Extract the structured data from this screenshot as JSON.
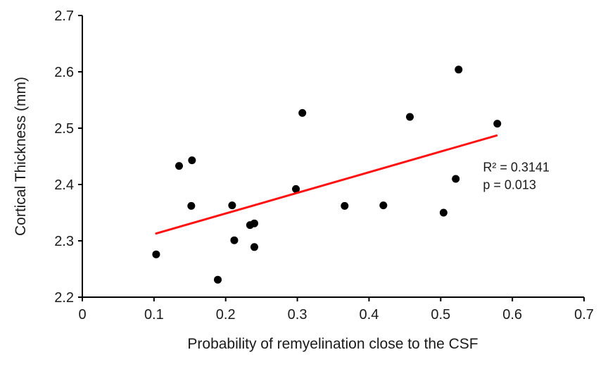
{
  "chart_data": {
    "type": "scatter",
    "title": "",
    "xlabel": "Probability of remyelination close to the CSF",
    "ylabel": "Cortical Thickness (mm)",
    "xlim": [
      0,
      0.7
    ],
    "ylim": [
      2.2,
      2.7
    ],
    "grid": false,
    "axis_color": "#000000",
    "point_color": "#000000",
    "x_ticks": [
      {
        "value": 0.0,
        "label": "0"
      },
      {
        "value": 0.1,
        "label": "0.1"
      },
      {
        "value": 0.2,
        "label": "0.2"
      },
      {
        "value": 0.3,
        "label": "0.3"
      },
      {
        "value": 0.4,
        "label": "0.4"
      },
      {
        "value": 0.5,
        "label": "0.5"
      },
      {
        "value": 0.6,
        "label": "0.6"
      },
      {
        "value": 0.7,
        "label": "0.7"
      }
    ],
    "y_ticks": [
      {
        "value": 2.2,
        "label": "2.2"
      },
      {
        "value": 2.3,
        "label": "2.3"
      },
      {
        "value": 2.4,
        "label": "2.4"
      },
      {
        "value": 2.5,
        "label": "2.5"
      },
      {
        "value": 2.6,
        "label": "2.6"
      },
      {
        "value": 2.7,
        "label": "2.7"
      }
    ],
    "points": [
      [
        0.103,
        2.276
      ],
      [
        0.135,
        2.433
      ],
      [
        0.153,
        2.443
      ],
      [
        0.152,
        2.362
      ],
      [
        0.189,
        2.231
      ],
      [
        0.209,
        2.363
      ],
      [
        0.212,
        2.301
      ],
      [
        0.234,
        2.328
      ],
      [
        0.24,
        2.331
      ],
      [
        0.24,
        2.289
      ],
      [
        0.298,
        2.392
      ],
      [
        0.307,
        2.527
      ],
      [
        0.366,
        2.362
      ],
      [
        0.42,
        2.363
      ],
      [
        0.457,
        2.52
      ],
      [
        0.504,
        2.35
      ],
      [
        0.521,
        2.41
      ],
      [
        0.525,
        2.604
      ],
      [
        0.579,
        2.508
      ]
    ],
    "trendline": {
      "x1": 0.103,
      "y1": 2.313,
      "x2": 0.578,
      "y2": 2.487,
      "color": "#ff1111"
    },
    "annotation": {
      "line1": "R² = 0.3141",
      "line2": "p = 0.013",
      "x": 0.559,
      "y": 2.423
    }
  }
}
